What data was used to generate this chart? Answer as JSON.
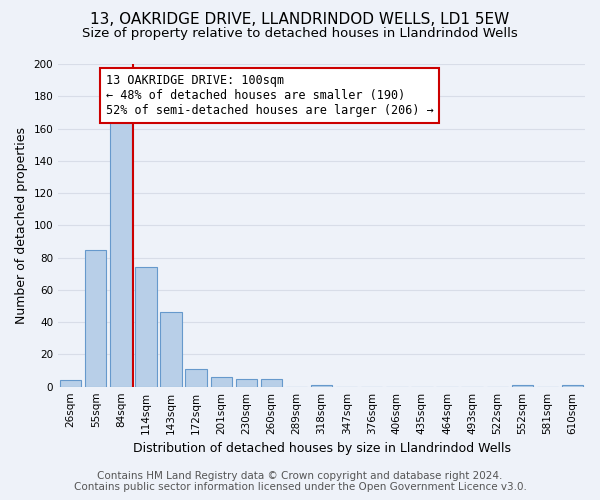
{
  "title": "13, OAKRIDGE DRIVE, LLANDRINDOD WELLS, LD1 5EW",
  "subtitle": "Size of property relative to detached houses in Llandrindod Wells",
  "xlabel": "Distribution of detached houses by size in Llandrindod Wells",
  "ylabel": "Number of detached properties",
  "bar_labels": [
    "26sqm",
    "55sqm",
    "84sqm",
    "114sqm",
    "143sqm",
    "172sqm",
    "201sqm",
    "230sqm",
    "260sqm",
    "289sqm",
    "318sqm",
    "347sqm",
    "376sqm",
    "406sqm",
    "435sqm",
    "464sqm",
    "493sqm",
    "522sqm",
    "552sqm",
    "581sqm",
    "610sqm"
  ],
  "bar_values": [
    4,
    85,
    164,
    74,
    46,
    11,
    6,
    5,
    5,
    0,
    1,
    0,
    0,
    0,
    0,
    0,
    0,
    0,
    1,
    0,
    1
  ],
  "bar_color": "#b8cfe8",
  "bar_edge_color": "#6699cc",
  "vline_color": "#cc0000",
  "annotation_text_line1": "13 OAKRIDGE DRIVE: 100sqm",
  "annotation_text_line2": "← 48% of detached houses are smaller (190)",
  "annotation_text_line3": "52% of semi-detached houses are larger (206) →",
  "ylim": [
    0,
    200
  ],
  "yticks": [
    0,
    20,
    40,
    60,
    80,
    100,
    120,
    140,
    160,
    180,
    200
  ],
  "footer_line1": "Contains HM Land Registry data © Crown copyright and database right 2024.",
  "footer_line2": "Contains public sector information licensed under the Open Government Licence v3.0.",
  "bg_color": "#eef2f9",
  "grid_color": "#d8dde8",
  "title_fontsize": 11,
  "subtitle_fontsize": 9.5,
  "tick_fontsize": 7.5,
  "ylabel_fontsize": 9,
  "xlabel_fontsize": 9,
  "footer_fontsize": 7.5,
  "annot_fontsize": 8.5
}
